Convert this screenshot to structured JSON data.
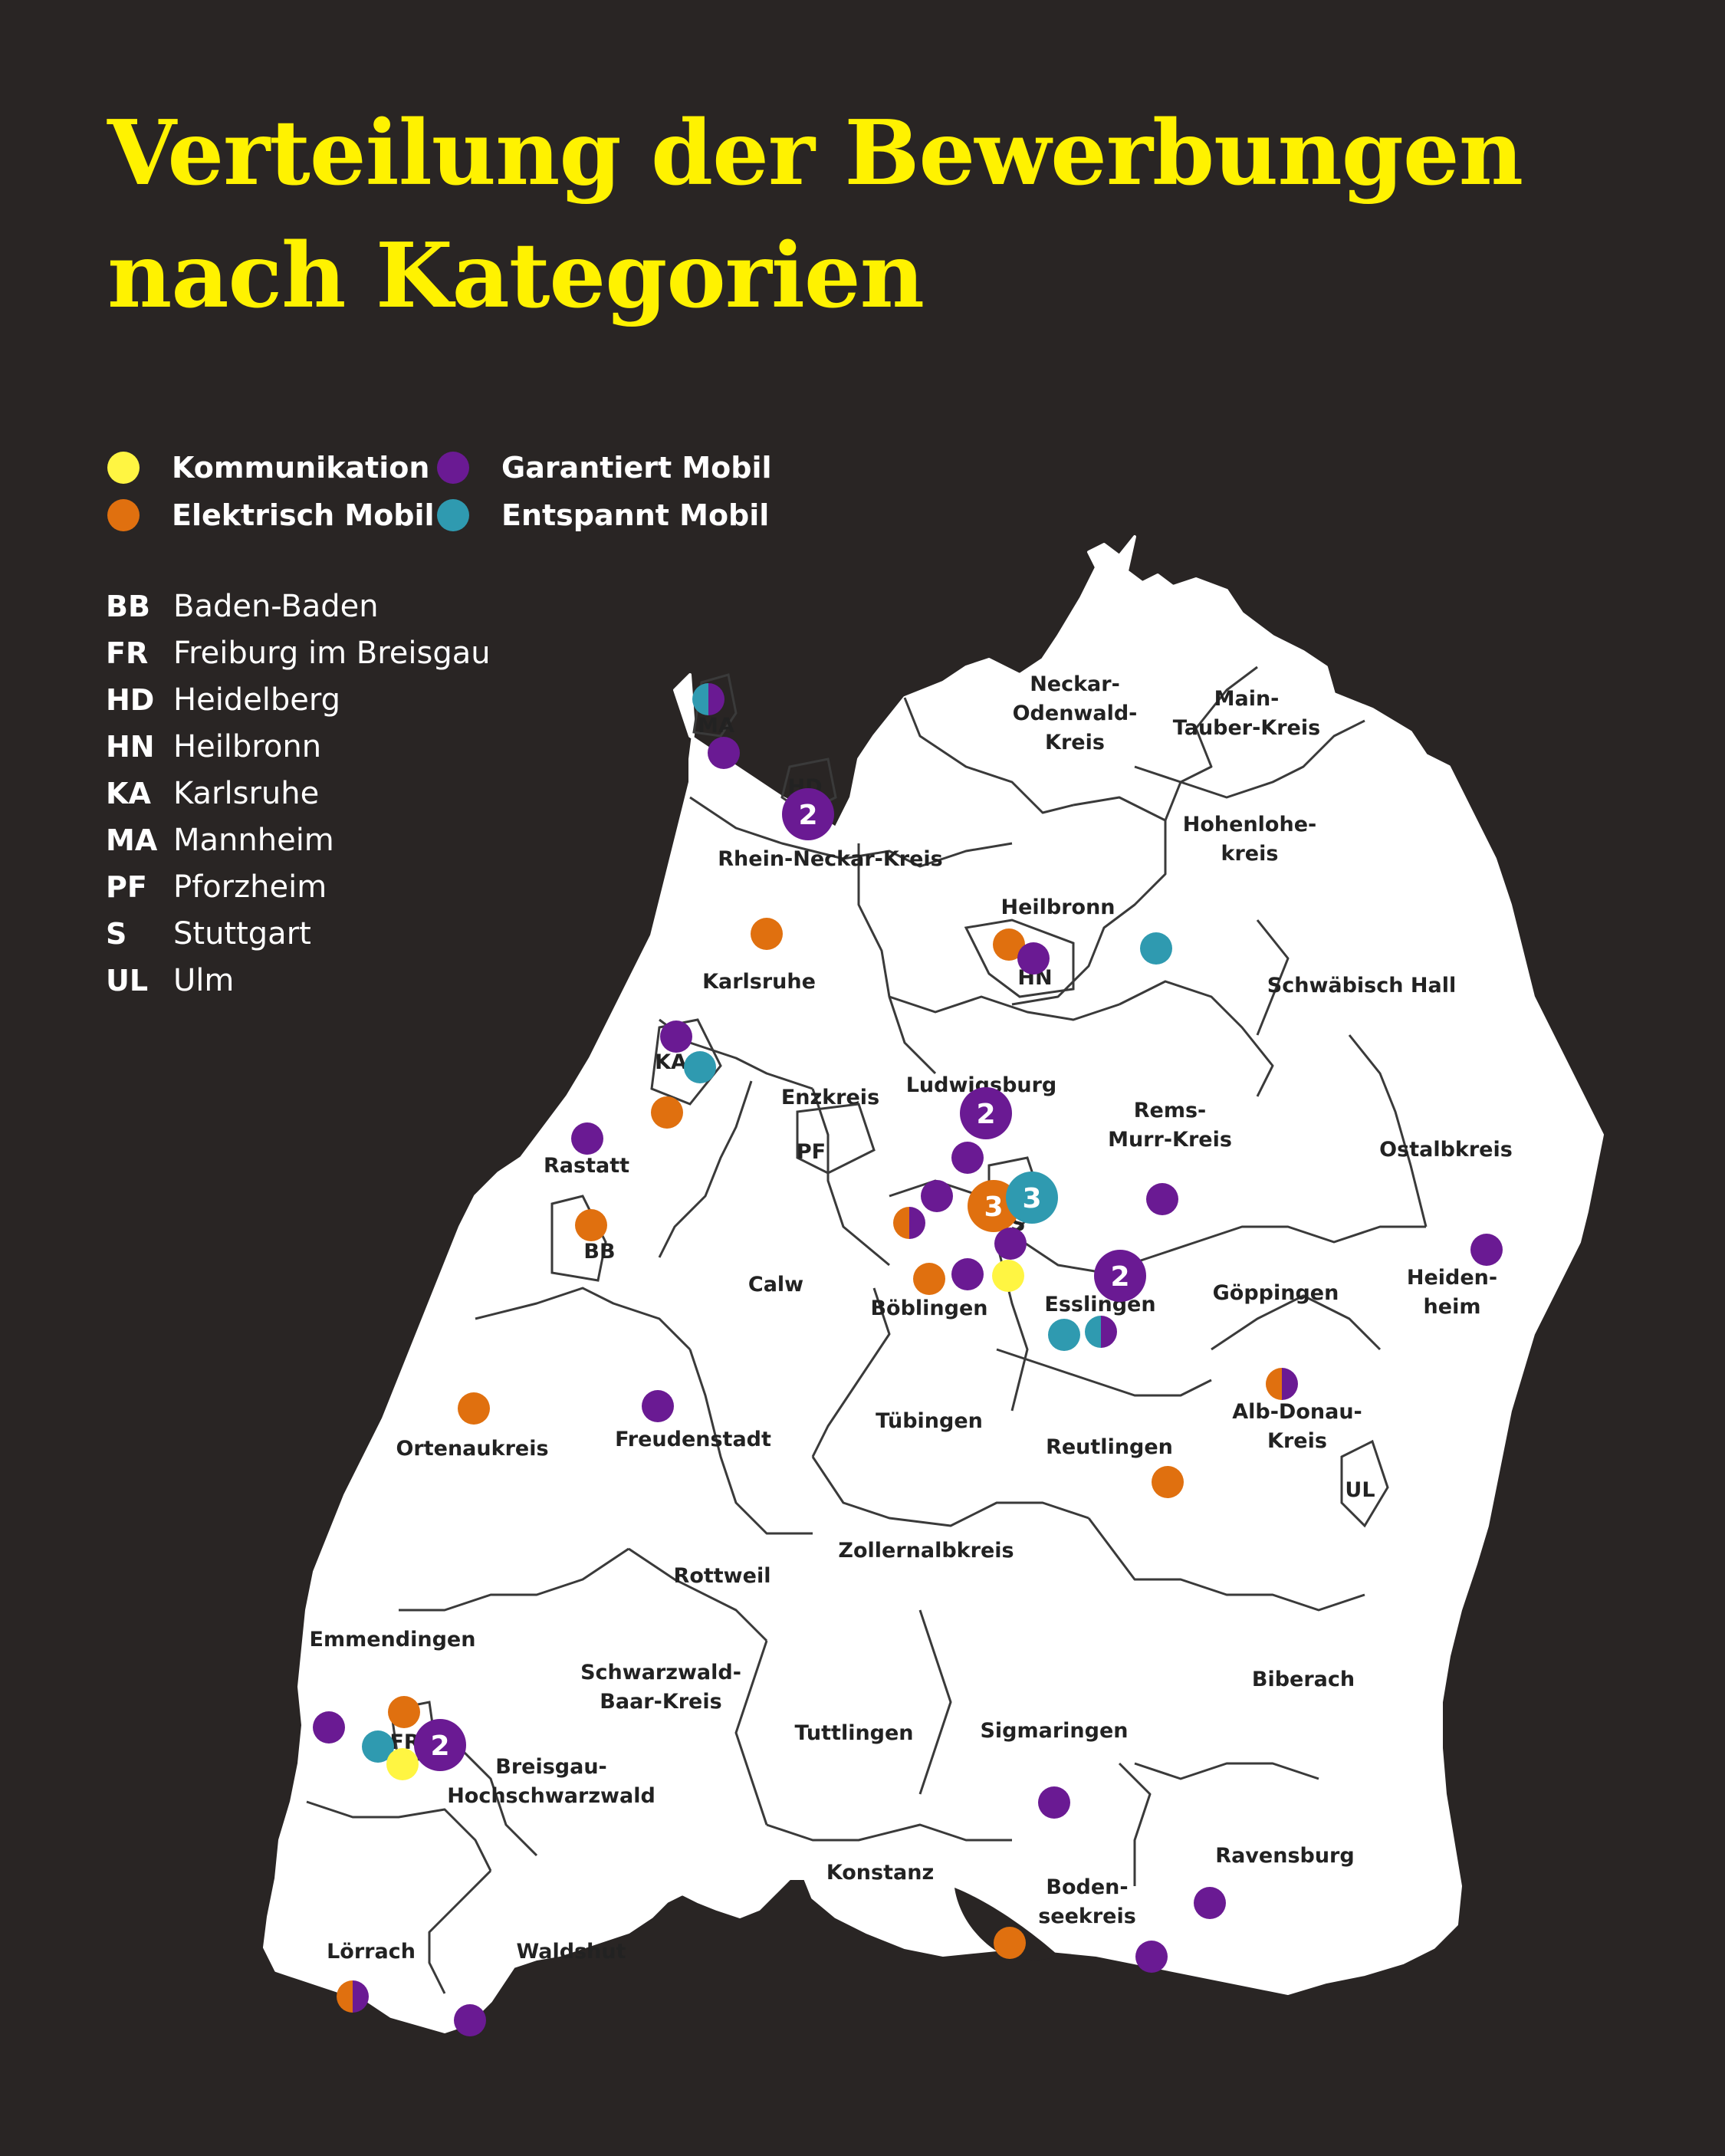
{
  "title": {
    "line1": "Verteilung der Bewerbungen",
    "line2": "nach Kategorien"
  },
  "colors": {
    "background": "#292524",
    "title": "#fff200",
    "map_fill": "#ffffff",
    "map_border": "#3a3a3a",
    "Kommunikation": "#fff542",
    "Garantiert Mobil": "#6a1a93",
    "Elektrisch Mobil": "#e0700f",
    "Entspannt Mobil": "#2f9ab0"
  },
  "legend": [
    {
      "key": "Kommunikation",
      "label": "Kommunikation",
      "color": "#fff542"
    },
    {
      "key": "Garantiert Mobil",
      "label": "Garantiert Mobil",
      "color": "#6a1a93"
    },
    {
      "key": "Elektrisch Mobil",
      "label": "Elektrisch Mobil",
      "color": "#e0700f"
    },
    {
      "key": "Entspannt Mobil",
      "label": "Entspannt Mobil",
      "color": "#2f9ab0"
    }
  ],
  "abbreviations": [
    {
      "code": "BB",
      "name": "Baden-Baden"
    },
    {
      "code": "FR",
      "name": "Freiburg im Breisgau"
    },
    {
      "code": "HD",
      "name": "Heidelberg"
    },
    {
      "code": "HN",
      "name": "Heilbronn"
    },
    {
      "code": "KA",
      "name": "Karlsruhe"
    },
    {
      "code": "MA",
      "name": "Mannheim"
    },
    {
      "code": "PF",
      "name": "Pforzheim"
    },
    {
      "code": "S",
      "name": "Stuttgart"
    },
    {
      "code": "UL",
      "name": "Ulm"
    }
  ],
  "districts": [
    {
      "name": "Neckar-Odenwald-Kreis",
      "lines": [
        "Neckar-",
        "Odenwald-",
        "Kreis"
      ]
    },
    {
      "name": "Main-Tauber-Kreis",
      "lines": [
        "Main-",
        "Tauber-Kreis"
      ]
    },
    {
      "name": "Rhein-Neckar-Kreis",
      "lines": [
        "Rhein-Neckar-Kreis"
      ]
    },
    {
      "name": "Hohenlohekreis",
      "lines": [
        "Hohenlohe-",
        "kreis"
      ]
    },
    {
      "name": "Heilbronn",
      "lines": [
        "Heilbronn"
      ]
    },
    {
      "name": "Karlsruhe",
      "lines": [
        "Karlsruhe"
      ]
    },
    {
      "name": "Schwäbisch Hall",
      "lines": [
        "Schwäbisch Hall"
      ]
    },
    {
      "name": "Ludwigsburg",
      "lines": [
        "Ludwigsburg"
      ]
    },
    {
      "name": "Enzkreis",
      "lines": [
        "Enzkreis"
      ]
    },
    {
      "name": "Rems-Murr-Kreis",
      "lines": [
        "Rems-",
        "Murr-Kreis"
      ]
    },
    {
      "name": "Ostalbkreis",
      "lines": [
        "Ostalbkreis"
      ]
    },
    {
      "name": "Rastatt",
      "lines": [
        "Rastatt"
      ]
    },
    {
      "name": "Calw",
      "lines": [
        "Calw"
      ]
    },
    {
      "name": "Böblingen",
      "lines": [
        "Böblingen"
      ]
    },
    {
      "name": "Esslingen",
      "lines": [
        "Esslingen"
      ]
    },
    {
      "name": "Göppingen",
      "lines": [
        "Göppingen"
      ]
    },
    {
      "name": "Heidenheim",
      "lines": [
        "Heiden-",
        "heim"
      ]
    },
    {
      "name": "Ortenaukreis",
      "lines": [
        "Ortenaukreis"
      ]
    },
    {
      "name": "Freudenstadt",
      "lines": [
        "Freudenstadt"
      ]
    },
    {
      "name": "Tübingen",
      "lines": [
        "Tübingen"
      ]
    },
    {
      "name": "Reutlingen",
      "lines": [
        "Reutlingen"
      ]
    },
    {
      "name": "Alb-Donau-Kreis",
      "lines": [
        "Alb-Donau-",
        "Kreis"
      ]
    },
    {
      "name": "Rottweil",
      "lines": [
        "Rottweil"
      ]
    },
    {
      "name": "Zollernalbkreis",
      "lines": [
        "Zollernalbkreis"
      ]
    },
    {
      "name": "Emmendingen",
      "lines": [
        "Emmendingen"
      ]
    },
    {
      "name": "Schwarzwald-Baar-Kreis",
      "lines": [
        "Schwarzwald-",
        "Baar-Kreis"
      ]
    },
    {
      "name": "Biberach",
      "lines": [
        "Biberach"
      ]
    },
    {
      "name": "Tuttlingen",
      "lines": [
        "Tuttlingen"
      ]
    },
    {
      "name": "Sigmaringen",
      "lines": [
        "Sigmaringen"
      ]
    },
    {
      "name": "Breisgau-Hochschwarzwald",
      "lines": [
        "Breisgau-",
        "Hochschwarzwald"
      ]
    },
    {
      "name": "Konstanz",
      "lines": [
        "Konstanz"
      ]
    },
    {
      "name": "Ravensburg",
      "lines": [
        "Ravensburg"
      ]
    },
    {
      "name": "Bodenseekreis",
      "lines": [
        "Boden-",
        "seekreis"
      ]
    },
    {
      "name": "Lörrach",
      "lines": [
        "Lörrach"
      ]
    },
    {
      "name": "Waldshut",
      "lines": [
        "Waldshut"
      ]
    }
  ],
  "cities": [
    "MA",
    "HD",
    "HN",
    "KA",
    "PF",
    "BB",
    "S",
    "FR",
    "UL"
  ],
  "markers": [
    {
      "place": "MA",
      "categories": [
        "Entspannt Mobil",
        "Garantiert Mobil"
      ],
      "count": 1
    },
    {
      "place": "MA",
      "categories": [
        "Garantiert Mobil"
      ],
      "count": 1
    },
    {
      "place": "HD",
      "categories": [
        "Garantiert Mobil"
      ],
      "count": 2,
      "label": "2"
    },
    {
      "place": "Karlsruhe",
      "categories": [
        "Elektrisch Mobil"
      ],
      "count": 1
    },
    {
      "place": "HN",
      "categories": [
        "Elektrisch Mobil"
      ],
      "count": 1
    },
    {
      "place": "HN",
      "categories": [
        "Garantiert Mobil"
      ],
      "count": 1
    },
    {
      "place": "Hohenlohekreis",
      "categories": [
        "Entspannt Mobil"
      ],
      "count": 1
    },
    {
      "place": "KA",
      "categories": [
        "Garantiert Mobil"
      ],
      "count": 1
    },
    {
      "place": "KA",
      "categories": [
        "Entspannt Mobil"
      ],
      "count": 1
    },
    {
      "place": "Karlsruhe",
      "categories": [
        "Elektrisch Mobil"
      ],
      "count": 1
    },
    {
      "place": "Rastatt",
      "categories": [
        "Garantiert Mobil"
      ],
      "count": 1
    },
    {
      "place": "BB",
      "categories": [
        "Elektrisch Mobil"
      ],
      "count": 1
    },
    {
      "place": "Ludwigsburg",
      "categories": [
        "Garantiert Mobil"
      ],
      "count": 2,
      "label": "2"
    },
    {
      "place": "Ludwigsburg",
      "categories": [
        "Garantiert Mobil"
      ],
      "count": 1
    },
    {
      "place": "Böblingen",
      "categories": [
        "Elektrisch Mobil",
        "Garantiert Mobil"
      ],
      "count": 1
    },
    {
      "place": "Böblingen",
      "categories": [
        "Garantiert Mobil"
      ],
      "count": 1
    },
    {
      "place": "S",
      "categories": [
        "Elektrisch Mobil"
      ],
      "count": 3,
      "label": "3"
    },
    {
      "place": "S",
      "categories": [
        "Entspannt Mobil"
      ],
      "count": 3,
      "label": "3"
    },
    {
      "place": "Rems-Murr-Kreis",
      "categories": [
        "Garantiert Mobil"
      ],
      "count": 1
    },
    {
      "place": "S",
      "categories": [
        "Garantiert Mobil"
      ],
      "count": 1
    },
    {
      "place": "Böblingen",
      "categories": [
        "Elektrisch Mobil"
      ],
      "count": 1
    },
    {
      "place": "Böblingen",
      "categories": [
        "Garantiert Mobil"
      ],
      "count": 1
    },
    {
      "place": "Böblingen",
      "categories": [
        "Kommunikation"
      ],
      "count": 1
    },
    {
      "place": "Esslingen",
      "categories": [
        "Garantiert Mobil"
      ],
      "count": 2,
      "label": "2"
    },
    {
      "place": "Esslingen",
      "categories": [
        "Entspannt Mobil"
      ],
      "count": 1
    },
    {
      "place": "Esslingen",
      "categories": [
        "Entspannt Mobil",
        "Garantiert Mobil"
      ],
      "count": 1
    },
    {
      "place": "Heidenheim",
      "categories": [
        "Garantiert Mobil"
      ],
      "count": 1
    },
    {
      "place": "Alb-Donau-Kreis",
      "categories": [
        "Elektrisch Mobil",
        "Garantiert Mobil"
      ],
      "count": 1
    },
    {
      "place": "Ortenaukreis",
      "categories": [
        "Elektrisch Mobil"
      ],
      "count": 1
    },
    {
      "place": "Freudenstadt",
      "categories": [
        "Garantiert Mobil"
      ],
      "count": 1
    },
    {
      "place": "Reutlingen",
      "categories": [
        "Elektrisch Mobil"
      ],
      "count": 1
    },
    {
      "place": "Breisgau-Hochschwarzwald",
      "categories": [
        "Garantiert Mobil"
      ],
      "count": 1
    },
    {
      "place": "FR",
      "categories": [
        "Elektrisch Mobil"
      ],
      "count": 1
    },
    {
      "place": "FR",
      "categories": [
        "Entspannt Mobil"
      ],
      "count": 1
    },
    {
      "place": "FR",
      "categories": [
        "Garantiert Mobil"
      ],
      "count": 2,
      "label": "2"
    },
    {
      "place": "FR",
      "categories": [
        "Kommunikation"
      ],
      "count": 1
    },
    {
      "place": "Sigmaringen",
      "categories": [
        "Garantiert Mobil"
      ],
      "count": 1
    },
    {
      "place": "Ravensburg",
      "categories": [
        "Garantiert Mobil"
      ],
      "count": 1
    },
    {
      "place": "Bodenseekreis",
      "categories": [
        "Elektrisch Mobil"
      ],
      "count": 1
    },
    {
      "place": "Bodenseekreis",
      "categories": [
        "Garantiert Mobil"
      ],
      "count": 1
    },
    {
      "place": "Lörrach",
      "categories": [
        "Elektrisch Mobil",
        "Garantiert Mobil"
      ],
      "count": 1
    },
    {
      "place": "Waldshut",
      "categories": [
        "Garantiert Mobil"
      ],
      "count": 1
    }
  ]
}
